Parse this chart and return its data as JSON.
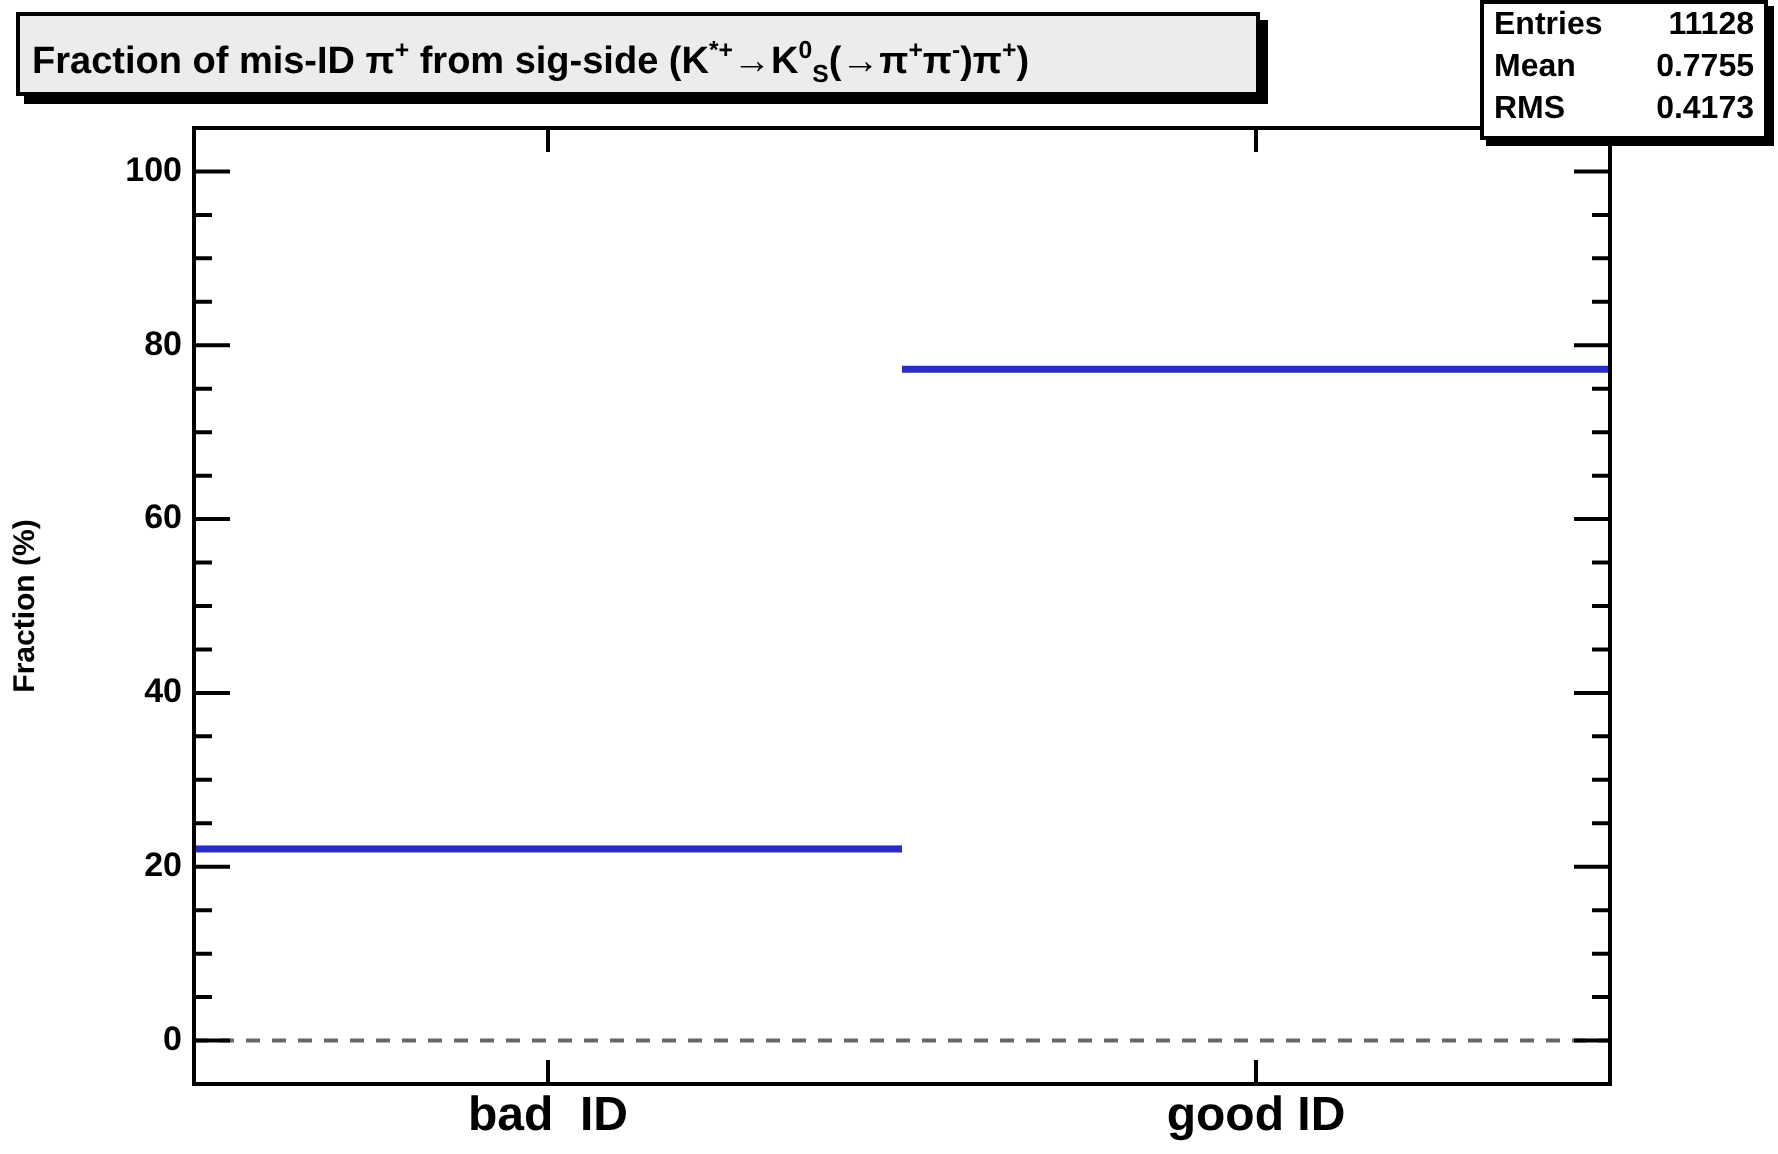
{
  "chart_data": {
    "type": "bar",
    "title": "Fraction of mis-ID π$^{+}$ from sig-side (K$^{*+}$→K$^{0}$$_{S}$(→π$^{+}$π$^{-}$)π$^{+}$)",
    "ylabel": "Fraction (%)",
    "categories": [
      "bad  ID",
      "good ID"
    ],
    "series": [
      {
        "color": "#2a2ac8",
        "values": [
          22.4,
          77.6
        ]
      }
    ],
    "ylim": [
      -5,
      105
    ],
    "yticks": [
      {
        "value": -5,
        "label": null
      },
      0,
      {
        "value": 5,
        "label": null
      },
      {
        "value": 10,
        "label": null
      },
      {
        "value": 15,
        "label": null
      },
      20,
      {
        "value": 25,
        "label": null
      },
      {
        "value": 30,
        "label": null
      },
      {
        "value": 35,
        "label": null
      },
      40,
      {
        "value": 45,
        "label": null
      },
      {
        "value": 50,
        "label": null
      },
      {
        "value": 55,
        "label": null
      },
      60,
      {
        "value": 65,
        "label": null
      },
      {
        "value": 70,
        "label": null
      },
      {
        "value": 75,
        "label": null
      },
      80,
      {
        "value": 85,
        "label": null
      },
      {
        "value": 90,
        "label": null
      },
      {
        "value": 95,
        "label": null
      },
      100,
      {
        "value": 105,
        "label": null
      }
    ],
    "ref_lines": [
      {
        "axis": "y",
        "value": 0,
        "color": "#666666",
        "line_style": "dashed"
      }
    ],
    "annotations": [
      "Entries 11128",
      "Mean 0.7755",
      "RMS 0.4173"
    ]
  }
}
